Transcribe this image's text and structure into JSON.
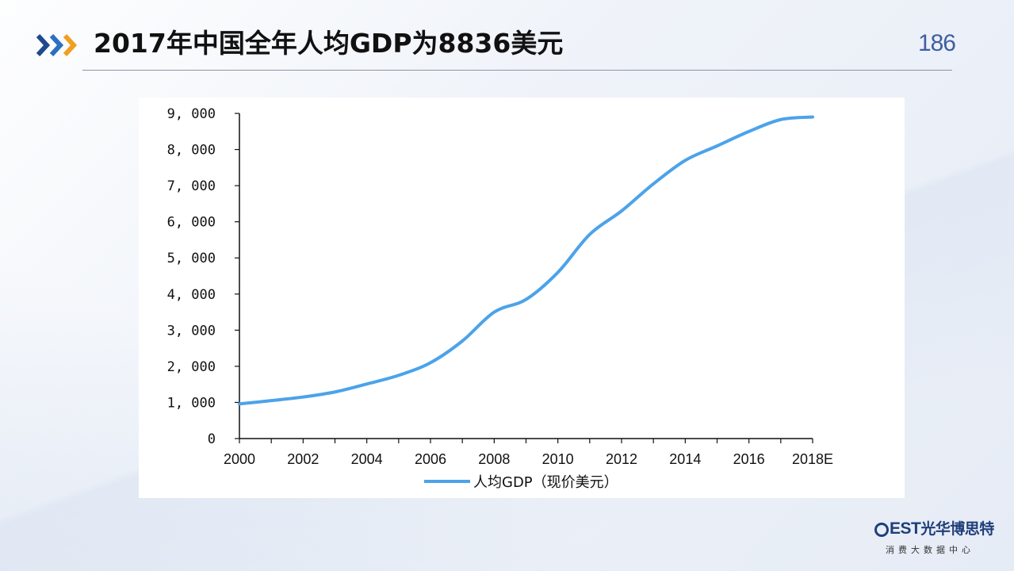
{
  "header": {
    "title": "2017年中国全年人均GDP为8836美元",
    "page_number": "186",
    "arrow_icon_colors": [
      "#1f4a8c",
      "#2a6fc0",
      "#f0a020"
    ]
  },
  "brand": {
    "logo_text": "EST",
    "logo_cn": "光华博思特",
    "subtitle": "消费大数据中心",
    "color": "#1f3f7a"
  },
  "chart_data": {
    "type": "line",
    "title": "",
    "xlabel": "",
    "ylabel": "",
    "x": [
      2000,
      2001,
      2002,
      2003,
      2004,
      2005,
      2006,
      2007,
      2008,
      2009,
      2010,
      2011,
      2012,
      2013,
      2014,
      2015,
      2016,
      2017,
      2018
    ],
    "xlim": [
      2000,
      2018
    ],
    "x_tick_labels": [
      "2000",
      "2002",
      "2004",
      "2006",
      "2008",
      "2010",
      "2012",
      "2014",
      "2016",
      "2018E"
    ],
    "ylim": [
      0,
      9000
    ],
    "y_tick_labels": [
      "0",
      "1, 000",
      "2, 000",
      "3, 000",
      "4, 000",
      "5, 000",
      "6, 000",
      "7, 000",
      "8, 000",
      "9, 000"
    ],
    "series": [
      {
        "name": "人均GDP（现价美元）",
        "color": "#4ba3ea",
        "values": [
          960,
          1050,
          1150,
          1290,
          1510,
          1750,
          2100,
          2700,
          3500,
          3850,
          4600,
          5650,
          6300,
          7050,
          7700,
          8100,
          8500,
          8830,
          8900
        ]
      }
    ],
    "legend": "bottom-center",
    "grid": false
  }
}
